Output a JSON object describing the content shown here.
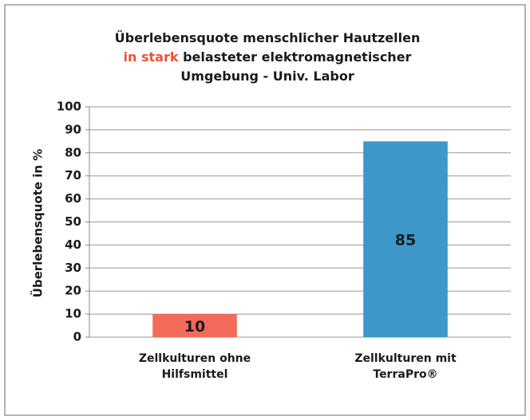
{
  "chart_data": {
    "type": "bar",
    "title_lines": [
      [
        {
          "text": "Überlebensquote menschlicher Hautzellen"
        }
      ],
      [
        {
          "text": "in stark",
          "color": "#e8533a"
        },
        {
          "text": " belasteter elektromagnetischer"
        }
      ],
      [
        {
          "text": "Umgebung - Univ. Labor"
        }
      ]
    ],
    "y_label": "Überlebensquote in %",
    "categories": [
      [
        "Zellkulturen ohne",
        "Hilfsmittel"
      ],
      [
        "Zellkulturen mit",
        "TerraPro®"
      ]
    ],
    "values": [
      10,
      85
    ],
    "colors": [
      "#f26b5b",
      "#3d97c9"
    ],
    "ylim": [
      0,
      100
    ],
    "yticks": [
      0,
      10,
      20,
      30,
      40,
      50,
      60,
      70,
      80,
      90,
      100
    ],
    "grid": true
  }
}
